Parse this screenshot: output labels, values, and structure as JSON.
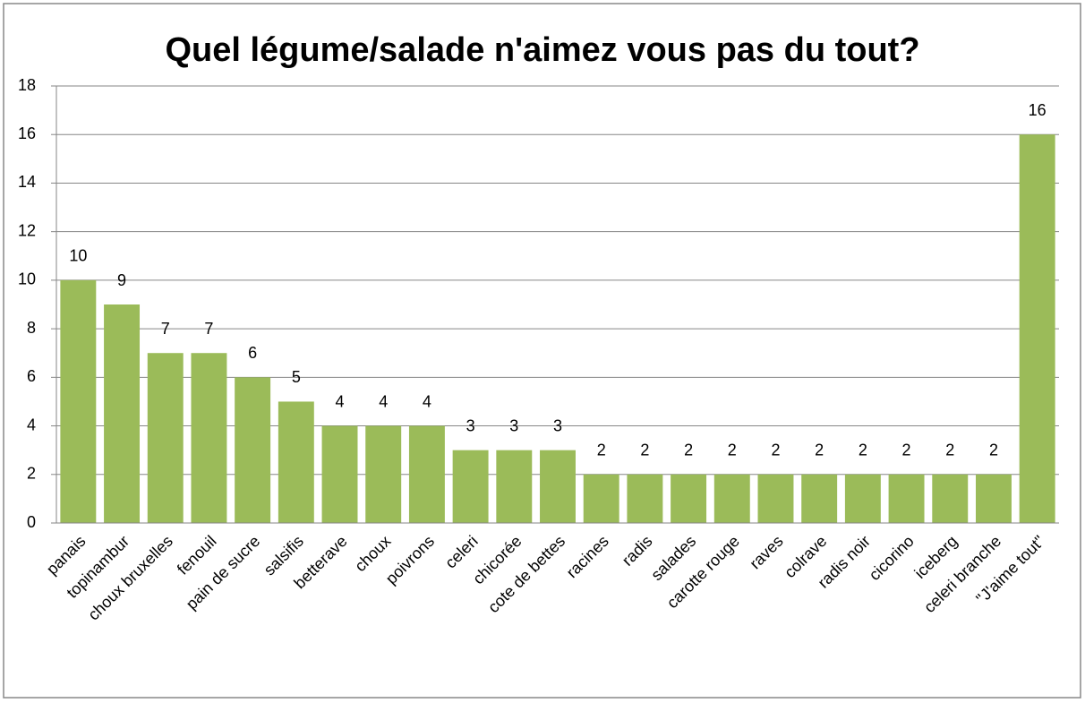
{
  "chart_data": {
    "type": "bar",
    "title": "Quel légume/salade n'aimez vous pas du tout?",
    "categories": [
      "panais",
      "topinambur",
      "choux bruxelles",
      "fenouil",
      "pain de sucre",
      "salsifis",
      "betterave",
      "choux",
      "poivrons",
      "celeri",
      "chicorée",
      "cote de bettes",
      "racines",
      "radis",
      "salades",
      "carotte rouge",
      "raves",
      "colrave",
      "radis noir",
      "cicorino",
      "iceberg",
      "celeri branche",
      "\"J'aime tout\""
    ],
    "values": [
      10,
      9,
      7,
      7,
      6,
      5,
      4,
      4,
      4,
      3,
      3,
      3,
      2,
      2,
      2,
      2,
      2,
      2,
      2,
      2,
      2,
      2,
      16
    ],
    "color": "#9bbb59",
    "ylim": [
      0,
      18
    ],
    "yticks": [
      0,
      2,
      4,
      6,
      8,
      10,
      12,
      14,
      16,
      18
    ],
    "grid": true
  }
}
